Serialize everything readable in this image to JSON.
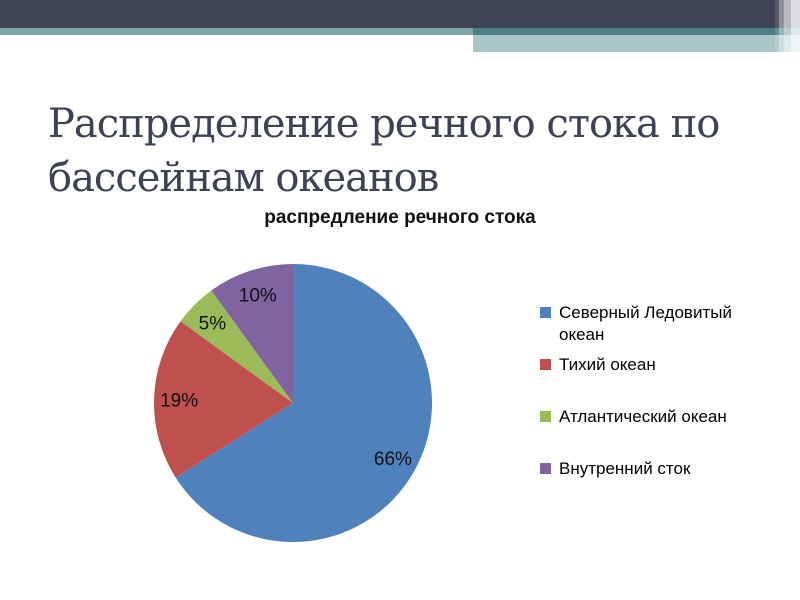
{
  "slide": {
    "title": "Распределение речного стока по бассейнам океанов",
    "title_lines": [
      "Распределение речного стока по",
      "бассейнам океанов"
    ]
  },
  "chart": {
    "title": "распредление речного стока"
  },
  "chart_data": {
    "type": "pie",
    "title": "распредление речного стока",
    "categories": [
      "Северный Ледовитый океан",
      "Тихий океан",
      "Атлантический океан",
      "Внутренний сток"
    ],
    "values": [
      66,
      19,
      5,
      10
    ],
    "unit": "%",
    "percent_labels": [
      "66%",
      "19%",
      "5%",
      "10%"
    ],
    "colors": [
      "#4F81BD",
      "#C0504D",
      "#9BBB59",
      "#8064A2"
    ],
    "start_angle_deg": 0,
    "direction": "clockwise",
    "legend_position": "right",
    "grid": false
  },
  "legend": {
    "items": [
      {
        "label": "Северный Ледовитый океан",
        "color": "#4F81BD"
      },
      {
        "label": "Тихий океан",
        "color": "#C0504D"
      },
      {
        "label": "Атлантический океан",
        "color": "#9BBB59"
      },
      {
        "label": "Внутренний сток",
        "color": "#8064A2"
      }
    ]
  },
  "theme": {
    "header_dark": "#3F4454",
    "teal_dark": "#4C8084",
    "teal_muted": "#7EA4A8",
    "teal_light": "#A9C5C8",
    "title_color": "#3D4352"
  }
}
